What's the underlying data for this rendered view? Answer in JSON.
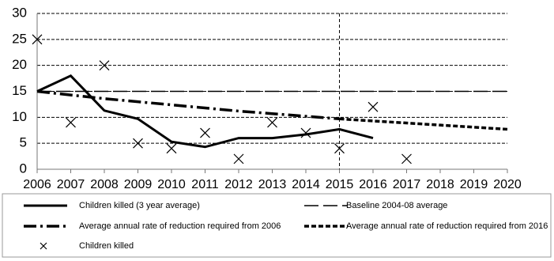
{
  "chart_data": {
    "type": "line",
    "xlim": [
      2006,
      2020
    ],
    "xticks": [
      2006,
      2007,
      2008,
      2009,
      2010,
      2011,
      2012,
      2013,
      2014,
      2015,
      2016,
      2017,
      2018,
      2019,
      2020
    ],
    "ylim": [
      0,
      30
    ],
    "yticks": [
      0,
      5,
      10,
      15,
      20,
      25,
      30
    ],
    "grid": true,
    "vline": 2015,
    "series": [
      {
        "name": "Children killed (3 year average)",
        "color": "#000000",
        "style": "solid",
        "x": [
          2006,
          2007,
          2008,
          2009,
          2010,
          2011,
          2012,
          2013,
          2014,
          2015,
          2016
        ],
        "values": [
          15,
          18,
          11.3,
          9.7,
          5.3,
          4.3,
          6,
          6,
          6.7,
          7.7,
          6
        ]
      },
      {
        "name": "Baseline 2004-08 average",
        "color": "#000000",
        "style": "long-dash",
        "x": [
          2006,
          2020
        ],
        "values": [
          15,
          15
        ]
      },
      {
        "name": "Average annual rate of reduction required from 2006",
        "color": "#000000",
        "style": "dash-dot",
        "x": [
          2006,
          2007,
          2008,
          2009,
          2010,
          2011,
          2012,
          2013,
          2014,
          2015
        ],
        "values": [
          15,
          14.3,
          13.6,
          13,
          12.4,
          11.8,
          11.2,
          10.7,
          10.2,
          9.7
        ]
      },
      {
        "name": "Average annual rate of reduction required from 2016",
        "color": "#000000",
        "style": "dash",
        "x": [
          2015,
          2016,
          2017,
          2018,
          2019,
          2020
        ],
        "values": [
          9.7,
          9.3,
          8.9,
          8.5,
          8.1,
          7.7
        ]
      },
      {
        "name": "Children killed",
        "color": "#000000",
        "style": "marker",
        "x": [
          2006,
          2007,
          2008,
          2009,
          2010,
          2011,
          2012,
          2013,
          2014,
          2015,
          2016,
          2017
        ],
        "values": [
          25,
          9,
          20,
          5,
          4,
          7,
          2,
          9,
          7,
          4,
          12,
          2
        ]
      }
    ]
  }
}
